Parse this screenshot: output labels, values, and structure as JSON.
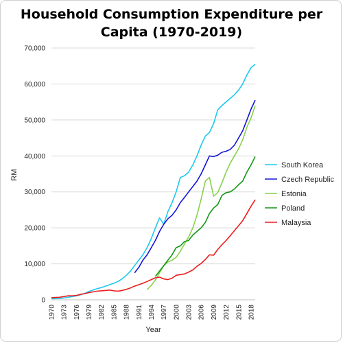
{
  "chart_data": {
    "type": "line",
    "title_line1": "Household Consumption Expenditure per",
    "title_line2": "Capita (1970-2019)",
    "xlabel": "Year",
    "ylabel": "RM",
    "xlim": [
      1970,
      2019
    ],
    "ylim": [
      0,
      70000
    ],
    "x_ticks": [
      1970,
      1973,
      1976,
      1979,
      1982,
      1985,
      1988,
      1991,
      1994,
      1997,
      2000,
      2003,
      2006,
      2009,
      2012,
      2015,
      2018
    ],
    "x_tick_labels": [
      "1970",
      "1973",
      "1976",
      "1979",
      "1982",
      "1985",
      "1988",
      "1991",
      "1994",
      "1997",
      "2000",
      "2003",
      "2006",
      "2009",
      "2012",
      "2015",
      "2018"
    ],
    "y_ticks": [
      0,
      10000,
      20000,
      30000,
      40000,
      50000,
      60000,
      70000
    ],
    "y_tick_labels": [
      "0",
      "10,000",
      "20,000",
      "30,000",
      "40,000",
      "50,000",
      "60,000",
      "70,000"
    ],
    "grid": true,
    "legend_position": "right",
    "series": [
      {
        "name": "South Korea",
        "color": "#1ec8ee",
        "x": [
          1970,
          1971,
          1972,
          1973,
          1974,
          1975,
          1976,
          1977,
          1978,
          1979,
          1980,
          1981,
          1982,
          1983,
          1984,
          1985,
          1986,
          1987,
          1988,
          1989,
          1990,
          1991,
          1992,
          1993,
          1994,
          1995,
          1996,
          1997,
          1998,
          1999,
          2000,
          2001,
          2002,
          2003,
          2004,
          2005,
          2006,
          2007,
          2008,
          2009,
          2010,
          2011,
          2012,
          2013,
          2014,
          2015,
          2016,
          2017,
          2018,
          2019
        ],
        "y": [
          300,
          350,
          400,
          500,
          700,
          900,
          1100,
          1400,
          1800,
          2300,
          2700,
          3100,
          3400,
          3800,
          4200,
          4600,
          5100,
          5800,
          6800,
          8000,
          9500,
          11000,
          12500,
          14500,
          17000,
          20000,
          22800,
          21000,
          24500,
          27000,
          30000,
          34000,
          34500,
          35500,
          37500,
          40000,
          43000,
          45500,
          46500,
          49000,
          52800,
          54000,
          55000,
          56000,
          57000,
          58300,
          60000,
          62500,
          64500,
          65500
        ]
      },
      {
        "name": "Czech Republic",
        "color": "#1414d8",
        "x": [
          1990,
          1991,
          1992,
          1993,
          1994,
          1995,
          1996,
          1997,
          1998,
          1999,
          2000,
          2001,
          2002,
          2003,
          2004,
          2005,
          2006,
          2007,
          2008,
          2009,
          2010,
          2011,
          2012,
          2013,
          2014,
          2015,
          2016,
          2017,
          2018,
          2019
        ],
        "y": [
          7500,
          9000,
          11000,
          12500,
          14500,
          16500,
          19000,
          21000,
          22500,
          23500,
          25000,
          27000,
          28500,
          30000,
          31500,
          33000,
          35000,
          37500,
          40000,
          39800,
          40200,
          41000,
          41300,
          41800,
          43000,
          45000,
          47000,
          50000,
          53000,
          55500
        ]
      },
      {
        "name": "Estonia",
        "color": "#86d24a",
        "x": [
          1993,
          1994,
          1995,
          1996,
          1997,
          1998,
          1999,
          2000,
          2001,
          2002,
          2003,
          2004,
          2005,
          2006,
          2007,
          2008,
          2009,
          2010,
          2011,
          2012,
          2013,
          2014,
          2015,
          2016,
          2017,
          2018,
          2019
        ],
        "y": [
          2800,
          4000,
          5500,
          7500,
          9500,
          10500,
          11000,
          11800,
          13500,
          15500,
          17500,
          20000,
          23500,
          28000,
          33000,
          34000,
          28800,
          29800,
          32500,
          35500,
          38000,
          40000,
          42000,
          44500,
          48000,
          50500,
          54000
        ]
      },
      {
        "name": "Poland",
        "color": "#149614",
        "x": [
          1995,
          1996,
          1997,
          1998,
          1999,
          2000,
          2001,
          2002,
          2003,
          2004,
          2005,
          2006,
          2007,
          2008,
          2009,
          2010,
          2011,
          2012,
          2013,
          2014,
          2015,
          2016,
          2017,
          2018,
          2019
        ],
        "y": [
          6500,
          8000,
          9500,
          11000,
          12500,
          14500,
          15000,
          16200,
          16500,
          18000,
          19000,
          20000,
          21500,
          24000,
          25500,
          26500,
          29000,
          29800,
          30000,
          30800,
          32000,
          33000,
          35500,
          37500,
          39800
        ]
      },
      {
        "name": "Malaysia",
        "color": "#ee1c1c",
        "x": [
          1970,
          1971,
          1972,
          1973,
          1974,
          1975,
          1976,
          1977,
          1978,
          1979,
          1980,
          1981,
          1982,
          1983,
          1984,
          1985,
          1986,
          1987,
          1988,
          1989,
          1990,
          1991,
          1992,
          1993,
          1994,
          1995,
          1996,
          1997,
          1998,
          1999,
          2000,
          2001,
          2002,
          2003,
          2004,
          2005,
          2006,
          2007,
          2008,
          2009,
          2010,
          2011,
          2012,
          2013,
          2014,
          2015,
          2016,
          2017,
          2018,
          2019
        ],
        "y": [
          600,
          650,
          700,
          900,
          1100,
          1100,
          1200,
          1500,
          1700,
          2000,
          2200,
          2400,
          2500,
          2600,
          2700,
          2500,
          2400,
          2600,
          2900,
          3300,
          3800,
          4200,
          4600,
          5100,
          5600,
          6100,
          6300,
          5800,
          5600,
          6000,
          6800,
          7000,
          7200,
          7700,
          8300,
          9300,
          10100,
          11200,
          12500,
          12400,
          14000,
          15300,
          16500,
          17800,
          19200,
          20600,
          22000,
          24000,
          26000,
          27800
        ]
      }
    ]
  }
}
